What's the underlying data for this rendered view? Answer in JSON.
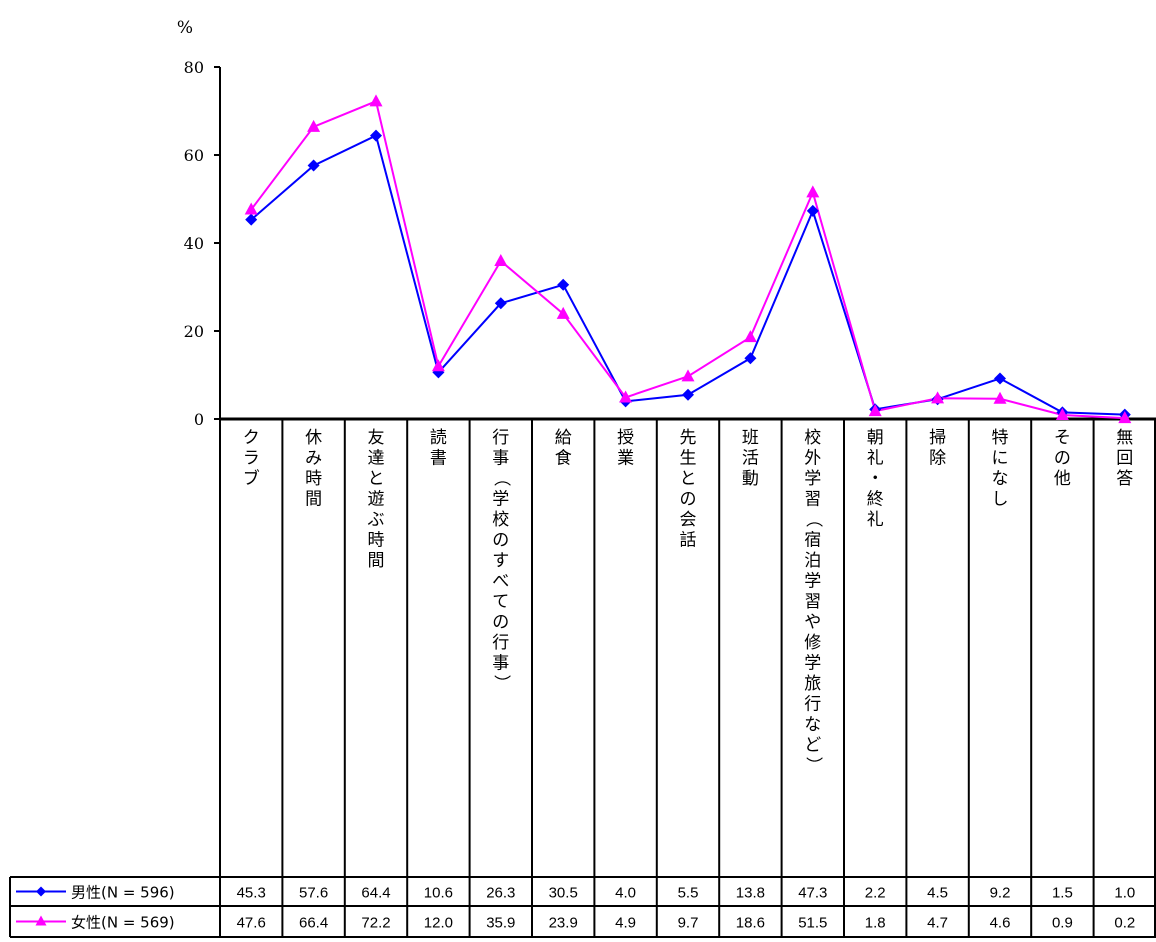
{
  "chart_data": {
    "type": "line",
    "ylabel": "%",
    "ylim": [
      0,
      80
    ],
    "yticks": [
      0,
      20,
      40,
      60,
      80
    ],
    "grid": false,
    "legend": "data-table-bottom",
    "categories": [
      "クラブ",
      "休み時間",
      "友達と遊ぶ時間",
      "読書",
      "行事（学校のすべての行事）",
      "給食",
      "授業",
      "先生との会話",
      "班活動",
      "校外学習（宿泊学習や修学旅行など）",
      "朝礼・終礼",
      "掃除",
      "特になし",
      "その他",
      "無回答"
    ],
    "series": [
      {
        "name": "男性(N = 596)",
        "color": "#0000ff",
        "marker": "diamond",
        "values": [
          45.3,
          57.6,
          64.4,
          10.6,
          26.3,
          30.5,
          4.0,
          5.5,
          13.8,
          47.3,
          2.2,
          4.5,
          9.2,
          1.5,
          1.0
        ],
        "labels": [
          "45.3",
          "57.6",
          "64.4",
          "10.6",
          "26.3",
          "30.5",
          "4.0",
          "5.5",
          "13.8",
          "47.3",
          "2.2",
          "4.5",
          "9.2",
          "1.5",
          "1.0"
        ]
      },
      {
        "name": "女性(N = 569)",
        "color": "#ff00ff",
        "marker": "triangle",
        "values": [
          47.6,
          66.4,
          72.2,
          12.0,
          35.9,
          23.9,
          4.9,
          9.7,
          18.6,
          51.5,
          1.8,
          4.7,
          4.6,
          0.9,
          0.2
        ],
        "labels": [
          "47.6",
          "66.4",
          "72.2",
          "12.0",
          "35.9",
          "23.9",
          "4.9",
          "9.7",
          "18.6",
          "51.5",
          "1.8",
          "4.7",
          "4.6",
          "0.9",
          "0.2"
        ]
      }
    ]
  }
}
